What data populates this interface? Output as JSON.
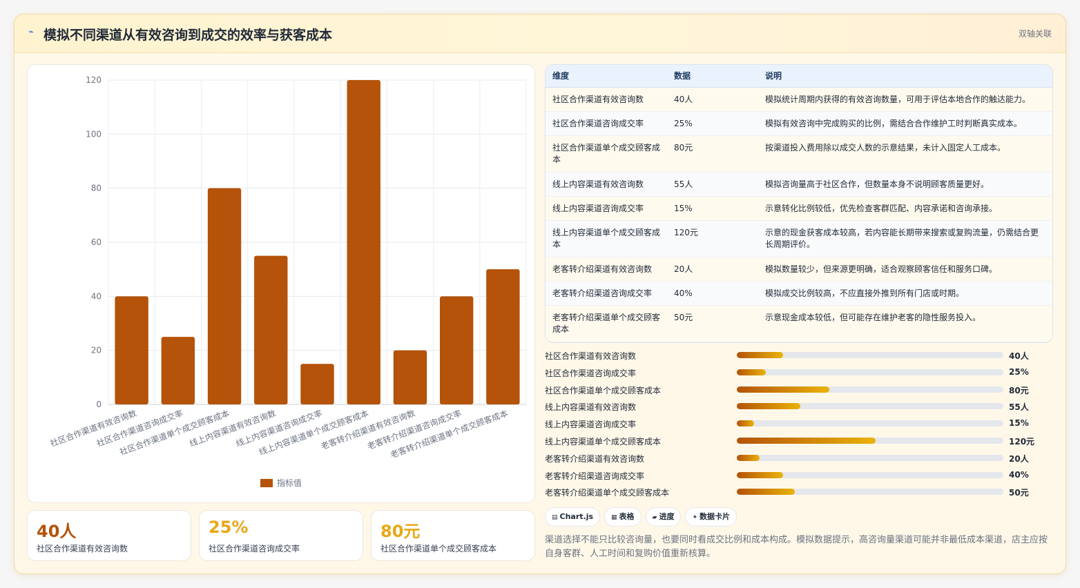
{
  "header": {
    "icon": "link-icon",
    "title": "模拟不同渠道从有效咨询到成交的效率与获客成本",
    "badge": "双轴关联"
  },
  "colors": {
    "bar": "#b45309",
    "kpi_primary": "#b45309",
    "kpi_accent": "#e6a817"
  },
  "chart_data": {
    "type": "bar",
    "categories": [
      "社区合作渠道有效咨询数",
      "社区合作渠道咨询成交率",
      "社区合作渠道单个成交顾客成本",
      "线上内容渠道有效咨询数",
      "线上内容渠道咨询成交率",
      "线上内容渠道单个成交顾客成本",
      "老客转介绍渠道有效咨询数",
      "老客转介绍渠道咨询成交率",
      "老客转介绍渠道单个成交顾客成本"
    ],
    "series": [
      {
        "name": "指标值",
        "values": [
          40,
          25,
          80,
          55,
          15,
          120,
          20,
          40,
          50
        ]
      }
    ],
    "yticks": [
      "0",
      "20",
      "40",
      "60",
      "80",
      "100",
      "120"
    ],
    "ylim": [
      0,
      120
    ],
    "grid": true,
    "legend": "bottom"
  },
  "kpis": [
    {
      "value": "40人",
      "label": "社区合作渠道有效咨询数"
    },
    {
      "value": "25%",
      "label": "社区合作渠道咨询成交率"
    },
    {
      "value": "80元",
      "label": "社区合作渠道单个成交顾客成本"
    }
  ],
  "table": {
    "headers": [
      "维度",
      "数据",
      "说明"
    ],
    "rows": [
      {
        "dim": "社区合作渠道有效咨询数",
        "val": "40人",
        "desc": "模拟统计周期内获得的有效咨询数量，可用于评估本地合作的触达能力。"
      },
      {
        "dim": "社区合作渠道咨询成交率",
        "val": "25%",
        "desc": "模拟有效咨询中完成购买的比例，需结合合作维护工时判断真实成本。"
      },
      {
        "dim": "社区合作渠道单个成交顾客成本",
        "val": "80元",
        "desc": "按渠道投入费用除以成交人数的示意结果，未计入固定人工成本。"
      },
      {
        "dim": "线上内容渠道有效咨询数",
        "val": "55人",
        "desc": "模拟咨询量高于社区合作，但数量本身不说明顾客质量更好。"
      },
      {
        "dim": "线上内容渠道咨询成交率",
        "val": "15%",
        "desc": "示意转化比例较低，优先检查客群匹配、内容承诺和咨询承接。"
      },
      {
        "dim": "线上内容渠道单个成交顾客成本",
        "val": "120元",
        "desc": "示意的现金获客成本较高，若内容能长期带来搜索或复购流量，仍需结合更长周期评价。"
      },
      {
        "dim": "老客转介绍渠道有效咨询数",
        "val": "20人",
        "desc": "模拟数量较少，但来源更明确，适合观察顾客信任和服务口碑。"
      },
      {
        "dim": "老客转介绍渠道咨询成交率",
        "val": "40%",
        "desc": "模拟成交比例较高，不应直接外推到所有门店或时期。"
      },
      {
        "dim": "老客转介绍渠道单个成交顾客成本",
        "val": "50元",
        "desc": "示意现金成本较低，但可能存在维护老客的隐性服务投入。"
      }
    ]
  },
  "progress": [
    {
      "label": "社区合作渠道有效咨询数",
      "value": "40人",
      "fraction": 0.1733
    },
    {
      "label": "社区合作渠道咨询成交率",
      "value": "25%",
      "fraction": 0.1083
    },
    {
      "label": "社区合作渠道单个成交顾客成本",
      "value": "80元",
      "fraction": 0.3467
    },
    {
      "label": "线上内容渠道有效咨询数",
      "value": "55人",
      "fraction": 0.2383
    },
    {
      "label": "线上内容渠道咨询成交率",
      "value": "15%",
      "fraction": 0.065
    },
    {
      "label": "线上内容渠道单个成交顾客成本",
      "value": "120元",
      "fraction": 0.52
    },
    {
      "label": "老客转介绍渠道有效咨询数",
      "value": "20人",
      "fraction": 0.0867
    },
    {
      "label": "老客转介绍渠道咨询成交率",
      "value": "40%",
      "fraction": 0.1733
    },
    {
      "label": "老客转介绍渠道单个成交顾客成本",
      "value": "50元",
      "fraction": 0.2167
    }
  ],
  "chips": [
    {
      "icon": "chart-icon",
      "glyph": "▤",
      "label": "Chart.js"
    },
    {
      "icon": "table-icon",
      "glyph": "▦",
      "label": "表格"
    },
    {
      "icon": "progress-icon",
      "glyph": "▰",
      "label": "进度"
    },
    {
      "icon": "card-icon",
      "glyph": "✦",
      "label": "数据卡片"
    }
  ],
  "note": "渠道选择不能只比较咨询量，也要同时看成交比例和成本构成。模拟数据提示，高咨询量渠道可能并非最低成本渠道，店主应按自身客群、人工时间和复购价值重新核算。"
}
